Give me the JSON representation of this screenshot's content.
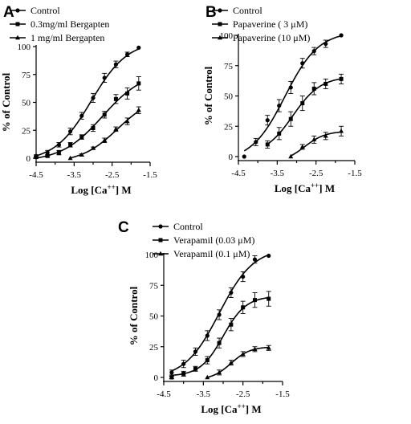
{
  "chart_data": [
    {
      "panel": "A",
      "type": "scatter",
      "xlabel": "Log [Ca++] M",
      "ylabel": "% of Control",
      "xlim": [
        -4.5,
        -1.5
      ],
      "ylim": [
        0,
        100
      ],
      "xticks": [
        "-4.5",
        "-3.5",
        "-2.5",
        "-1.5"
      ],
      "yticks": [
        "0",
        "25",
        "50",
        "75",
        "100"
      ],
      "legend": "top-left",
      "series": [
        {
          "name": "Control",
          "marker": "circle",
          "x": [
            -4.5,
            -4.2,
            -3.9,
            -3.6,
            -3.3,
            -3.0,
            -2.7,
            -2.4,
            -2.1,
            -1.8
          ],
          "y": [
            2,
            5,
            12,
            24,
            38,
            54,
            72,
            84,
            93,
            99
          ],
          "err": [
            1,
            2,
            2,
            3,
            3,
            4,
            4,
            3,
            2,
            0
          ]
        },
        {
          "name": "0.3mg/ml Bergapten",
          "marker": "square",
          "x": [
            -4.5,
            -4.2,
            -3.9,
            -3.6,
            -3.3,
            -3.0,
            -2.7,
            -2.4,
            -2.1,
            -1.8
          ],
          "y": [
            1,
            2,
            5,
            12,
            19,
            27,
            39,
            53,
            58,
            67
          ],
          "err": [
            1,
            1,
            2,
            2,
            2,
            3,
            3,
            4,
            5,
            6
          ]
        },
        {
          "name": "1 mg/ml Bergapten",
          "marker": "triangle",
          "x": [
            -3.6,
            -3.3,
            -3.0,
            -2.7,
            -2.4,
            -2.1,
            -1.8
          ],
          "y": [
            0,
            3,
            9,
            16,
            26,
            33,
            43
          ],
          "err": [
            0,
            1,
            1,
            2,
            2,
            3,
            3
          ]
        }
      ]
    },
    {
      "panel": "B",
      "type": "scatter",
      "xlabel": "Log [Ca++] M",
      "ylabel": "% of Control",
      "xlim": [
        -4.5,
        -1.5
      ],
      "ylim": [
        0,
        100
      ],
      "xticks": [
        "-4.5",
        "-3.5",
        "-2.5",
        "-1.5"
      ],
      "yticks": [
        "0",
        "25",
        "50",
        "75",
        "100"
      ],
      "legend": "top-left",
      "series": [
        {
          "name": "Control",
          "marker": "circle",
          "x": [
            -4.35,
            -4.05,
            -3.75,
            -3.45,
            -3.15,
            -2.85,
            -2.55,
            -2.25,
            -1.85
          ],
          "y": [
            0,
            12,
            30,
            42,
            57,
            77,
            87,
            93,
            100
          ],
          "err": [
            0,
            3,
            4,
            5,
            5,
            4,
            3,
            3,
            0
          ]
        },
        {
          "name": "Papaverine ( 3 μM)",
          "marker": "square",
          "x": [
            -3.75,
            -3.45,
            -3.15,
            -2.85,
            -2.55,
            -2.25,
            -1.85
          ],
          "y": [
            10,
            19,
            31,
            44,
            56,
            60,
            64
          ],
          "err": [
            3,
            5,
            6,
            6,
            5,
            4,
            4
          ]
        },
        {
          "name": "Papaverine (10 μM)",
          "marker": "triangle",
          "x": [
            -3.15,
            -2.85,
            -2.55,
            -2.25,
            -1.85
          ],
          "y": [
            0,
            8,
            14,
            17,
            21
          ],
          "err": [
            0,
            2,
            3,
            3,
            4
          ]
        }
      ]
    },
    {
      "panel": "C",
      "type": "scatter",
      "xlabel": "Log [Ca++] M",
      "ylabel": "% of Control",
      "xlim": [
        -4.5,
        -1.5
      ],
      "ylim": [
        0,
        100
      ],
      "xticks": [
        "-4.5",
        "-3.5",
        "-2.5",
        "-1.5"
      ],
      "yticks": [
        "0",
        "25",
        "50",
        "75",
        "100"
      ],
      "legend": "top-left",
      "series": [
        {
          "name": "Control",
          "marker": "circle",
          "x": [
            -4.3,
            -4.0,
            -3.7,
            -3.4,
            -3.1,
            -2.8,
            -2.5,
            -2.2,
            -1.85
          ],
          "y": [
            4,
            11,
            21,
            34,
            51,
            69,
            82,
            96,
            99
          ],
          "err": [
            2,
            3,
            3,
            4,
            4,
            4,
            4,
            3,
            0
          ]
        },
        {
          "name": "Verapamil (0.03 μM)",
          "marker": "square",
          "x": [
            -4.3,
            -4.0,
            -3.7,
            -3.4,
            -3.1,
            -2.8,
            -2.5,
            -2.2,
            -1.85
          ],
          "y": [
            0,
            3,
            7,
            14,
            28,
            43,
            57,
            63,
            64
          ],
          "err": [
            1,
            2,
            2,
            3,
            4,
            5,
            5,
            6,
            6
          ]
        },
        {
          "name": "Verapamil (0.1 μM)",
          "marker": "triangle",
          "x": [
            -3.4,
            -3.1,
            -2.8,
            -2.5,
            -2.2,
            -1.85
          ],
          "y": [
            0,
            4,
            12,
            19,
            23,
            24
          ],
          "err": [
            0,
            2,
            2,
            2,
            2,
            2
          ]
        }
      ]
    }
  ]
}
